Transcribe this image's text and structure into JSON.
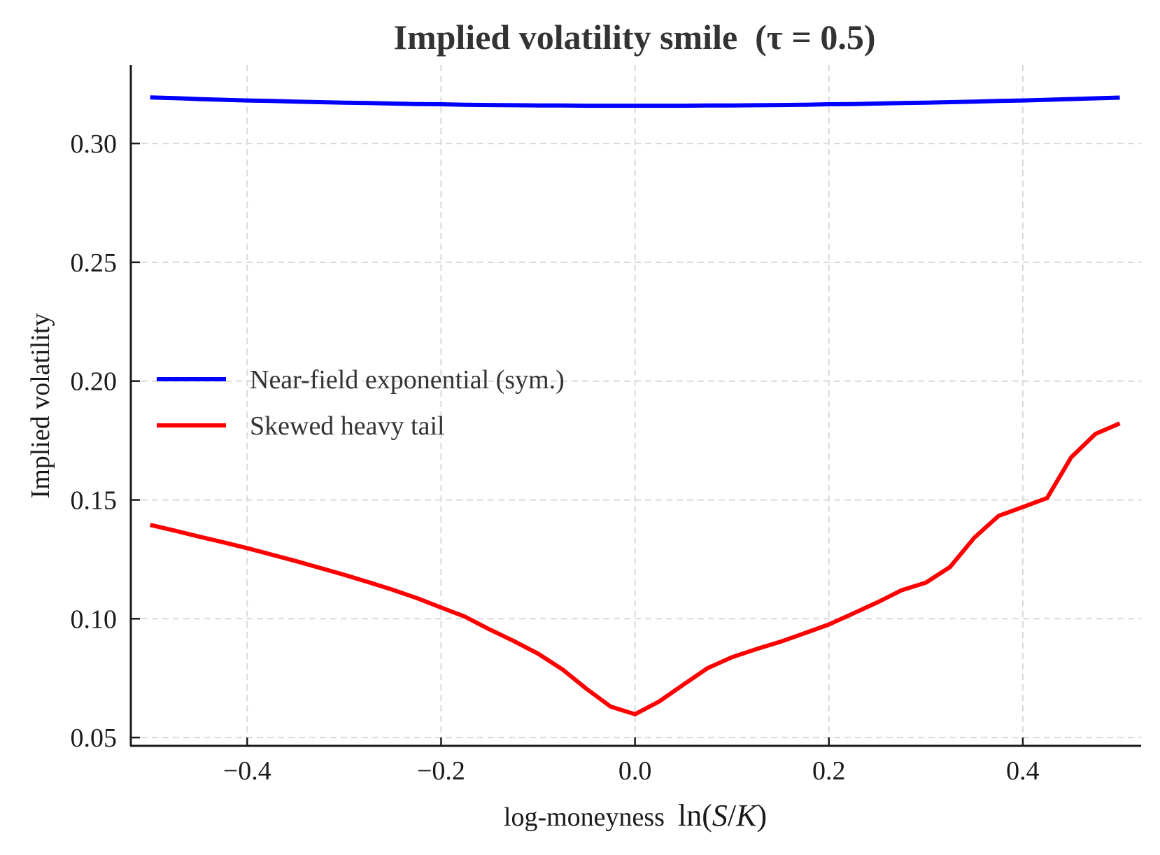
{
  "chart_data": {
    "type": "line",
    "title": "Implied volatility smile  (τ = 0.5)",
    "xlabel": "log-moneyness  ln(S/K)",
    "xlabel_parts": {
      "text": "log-moneyness  ",
      "math_prefix": "ln(",
      "S": "S",
      "slash": "/",
      "K": "K",
      "math_suffix": ")"
    },
    "ylabel": "Implied volatility",
    "xlim": [
      -0.52,
      0.522
    ],
    "ylim": [
      0.0465,
      0.333
    ],
    "xticks": [
      -0.4,
      -0.2,
      0.0,
      0.2,
      0.4
    ],
    "xtick_labels": [
      "−0.4",
      "−0.2",
      "0.0",
      "0.2",
      "0.4"
    ],
    "yticks": [
      0.05,
      0.1,
      0.15,
      0.2,
      0.25,
      0.3
    ],
    "ytick_labels": [
      "0.05",
      "0.10",
      "0.15",
      "0.20",
      "0.25",
      "0.30"
    ],
    "grid": true,
    "legend_position": "center-left",
    "x": [
      -0.5,
      -0.475,
      -0.45,
      -0.425,
      -0.4,
      -0.375,
      -0.35,
      -0.325,
      -0.3,
      -0.275,
      -0.25,
      -0.225,
      -0.2,
      -0.175,
      -0.15,
      -0.125,
      -0.1,
      -0.075,
      -0.05,
      -0.025,
      0.0,
      0.025,
      0.05,
      0.075,
      0.1,
      0.125,
      0.15,
      0.175,
      0.2,
      0.225,
      0.25,
      0.275,
      0.3,
      0.325,
      0.35,
      0.375,
      0.4,
      0.425,
      0.45,
      0.475,
      0.5
    ],
    "series": [
      {
        "name": "Near-field exponential (sym.)",
        "color": "#0000ff",
        "values": [
          0.3194,
          0.3191,
          0.3187,
          0.3184,
          0.3181,
          0.3179,
          0.3176,
          0.3174,
          0.3172,
          0.317,
          0.3168,
          0.3166,
          0.3165,
          0.3163,
          0.3162,
          0.3161,
          0.316,
          0.316,
          0.3159,
          0.3159,
          0.3159,
          0.3159,
          0.3159,
          0.316,
          0.316,
          0.3161,
          0.3162,
          0.3163,
          0.3165,
          0.3166,
          0.3168,
          0.317,
          0.3172,
          0.3174,
          0.3176,
          0.3179,
          0.3181,
          0.3184,
          0.3187,
          0.319,
          0.3193
        ]
      },
      {
        "name": "Skewed heavy tail",
        "color": "#ff0000",
        "values": [
          0.1395,
          0.1371,
          0.1346,
          0.1322,
          0.1297,
          0.127,
          0.1243,
          0.1214,
          0.1185,
          0.1154,
          0.1122,
          0.1087,
          0.1047,
          0.1008,
          0.0955,
          0.0906,
          0.0853,
          0.0787,
          0.0705,
          0.063,
          0.0598,
          0.0652,
          0.0723,
          0.0792,
          0.0838,
          0.0872,
          0.0903,
          0.0939,
          0.0976,
          0.1022,
          0.1069,
          0.112,
          0.1152,
          0.1218,
          0.1341,
          0.1433,
          0.147,
          0.1508,
          0.168,
          0.1778,
          0.1822
        ]
      }
    ]
  }
}
